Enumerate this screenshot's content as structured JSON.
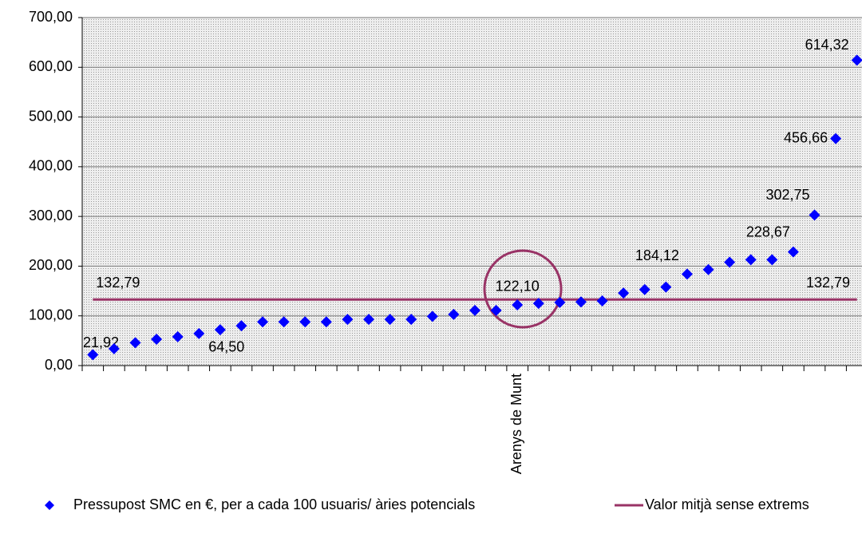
{
  "chart_data": {
    "type": "scatter",
    "categories": [
      null,
      null,
      null,
      null,
      null,
      null,
      null,
      null,
      null,
      null,
      null,
      null,
      null,
      null,
      null,
      null,
      null,
      null,
      null,
      null,
      "Arenys de Munt",
      null,
      null,
      null,
      null,
      null,
      null,
      null,
      null,
      null,
      null,
      null,
      null,
      null,
      null,
      null,
      null
    ],
    "series": [
      {
        "name": "Pressupost SMC en €, per a cada 100 usuaris/ àries potencials",
        "color": "#0000ff",
        "values": [
          21.92,
          34,
          46,
          53,
          58,
          64.5,
          72,
          80,
          88,
          88,
          88,
          88,
          93,
          93,
          93,
          93,
          99,
          103,
          111,
          111,
          122.1,
          125,
          127,
          128,
          130,
          146,
          153,
          158,
          184.12,
          193,
          208,
          213,
          213,
          228.67,
          302.75,
          456.66,
          614.32
        ],
        "value_labels": [
          "21,92",
          null,
          null,
          null,
          null,
          "64,50",
          null,
          null,
          null,
          null,
          null,
          null,
          null,
          null,
          null,
          null,
          null,
          null,
          null,
          null,
          "122,10",
          null,
          null,
          null,
          null,
          null,
          null,
          null,
          "184,12",
          null,
          null,
          null,
          null,
          "228,67",
          "302,75",
          "456,66",
          "614,32"
        ]
      },
      {
        "name": "Valor mitjà sense extrems",
        "color": "#993366",
        "values": [
          132.79,
          132.79,
          132.79,
          132.79,
          132.79,
          132.79,
          132.79,
          132.79,
          132.79,
          132.79,
          132.79,
          132.79,
          132.79,
          132.79,
          132.79,
          132.79,
          132.79,
          132.79,
          132.79,
          132.79,
          132.79,
          132.79,
          132.79,
          132.79,
          132.79,
          132.79,
          132.79,
          132.79,
          132.79,
          132.79,
          132.79,
          132.79,
          132.79,
          132.79,
          132.79,
          132.79,
          132.79
        ],
        "value_labels": [
          "132,79",
          null,
          null,
          null,
          null,
          null,
          null,
          null,
          null,
          null,
          null,
          null,
          null,
          null,
          null,
          null,
          null,
          null,
          null,
          null,
          null,
          null,
          null,
          null,
          null,
          null,
          null,
          null,
          null,
          null,
          null,
          null,
          null,
          null,
          null,
          null,
          "132,79"
        ]
      }
    ],
    "ylim": [
      0,
      700
    ],
    "yticks": [
      {
        "value": 0,
        "label": "0,00"
      },
      {
        "value": 100,
        "label": "100,00"
      },
      {
        "value": 200,
        "label": "200,00"
      },
      {
        "value": 300,
        "label": "300,00"
      },
      {
        "value": 400,
        "label": "400,00"
      },
      {
        "value": 500,
        "label": "500,00"
      },
      {
        "value": 600,
        "label": "600,00"
      },
      {
        "value": 700,
        "label": "700,00"
      }
    ],
    "grid": true,
    "legend": "bottom"
  }
}
